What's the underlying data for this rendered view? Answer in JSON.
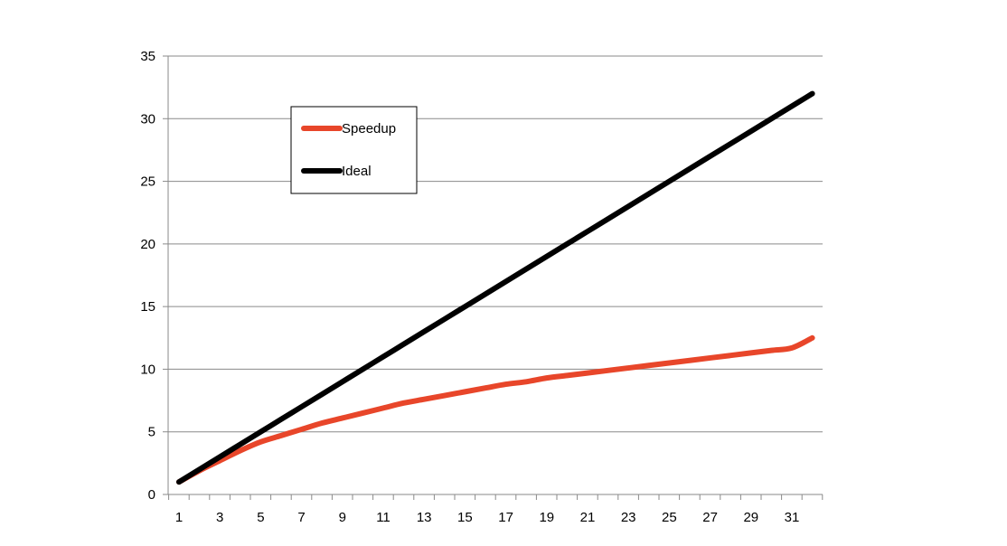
{
  "chart_data": {
    "type": "line",
    "x": [
      1,
      2,
      3,
      4,
      5,
      6,
      7,
      8,
      9,
      10,
      11,
      12,
      13,
      14,
      15,
      16,
      17,
      18,
      19,
      20,
      21,
      22,
      23,
      24,
      25,
      26,
      27,
      28,
      29,
      30,
      31,
      32
    ],
    "series": [
      {
        "name": "Speedup",
        "color": "#e8462a",
        "values": [
          1.0,
          1.9,
          2.7,
          3.5,
          4.2,
          4.7,
          5.2,
          5.7,
          6.1,
          6.5,
          6.9,
          7.3,
          7.6,
          7.9,
          8.2,
          8.5,
          8.8,
          9.0,
          9.3,
          9.5,
          9.7,
          9.9,
          10.1,
          10.3,
          10.5,
          10.7,
          10.9,
          11.1,
          11.3,
          11.5,
          11.7,
          12.5
        ]
      },
      {
        "name": "Ideal",
        "color": "#000000",
        "values": [
          1,
          2,
          3,
          4,
          5,
          6,
          7,
          8,
          9,
          10,
          11,
          12,
          13,
          14,
          15,
          16,
          17,
          18,
          19,
          20,
          21,
          22,
          23,
          24,
          25,
          26,
          27,
          28,
          29,
          30,
          31,
          32
        ]
      }
    ],
    "x_tick_labels": [
      "1",
      "3",
      "5",
      "7",
      "9",
      "11",
      "13",
      "15",
      "17",
      "19",
      "21",
      "23",
      "25",
      "27",
      "29",
      "31"
    ],
    "y_ticks": [
      0,
      5,
      10,
      15,
      20,
      25,
      30,
      35
    ],
    "ylim": [
      0,
      35
    ],
    "xlim": [
      1,
      32
    ],
    "grid": "horizontal",
    "legend": "top-left"
  }
}
